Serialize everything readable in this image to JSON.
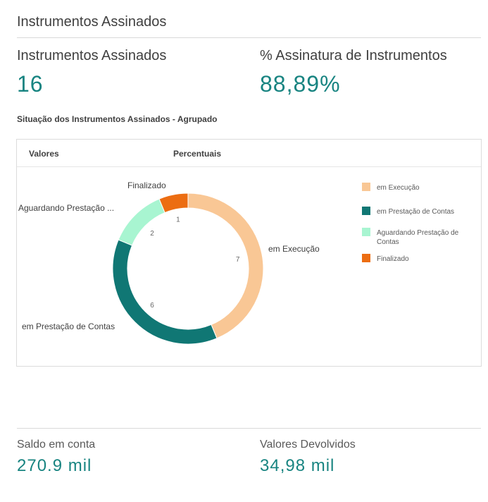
{
  "section_title": "Instrumentos Assinados",
  "kpis": {
    "signed_label": "Instrumentos Assinados",
    "signed_value": "16",
    "pct_label": "% Assinatura de Instrumentos",
    "pct_value": "88,89%"
  },
  "chart_title": "Situação dos Instrumentos Assinados - Agrupado",
  "tabs": [
    "Valores",
    "Percentuais"
  ],
  "chart_data": {
    "type": "pie",
    "categories": [
      "em Execução",
      "em Prestação de Contas",
      "Aguardando Prestação de Contas",
      "Finalizado"
    ],
    "values": [
      7,
      6,
      2,
      1
    ],
    "slice_labels": [
      "em Execução",
      "em Prestação de Contas",
      "Aguardando Prestação ...",
      "Finalizado"
    ],
    "colors": [
      "#f9c795",
      "#107774",
      "#a8f5d1",
      "#ec6d12"
    ],
    "legend_position": "right"
  },
  "bottom": {
    "saldo_label": "Saldo em conta",
    "saldo_value": "270.9 mil",
    "devolvidos_label": "Valores Devolvidos",
    "devolvidos_value": "34,98 mil"
  }
}
